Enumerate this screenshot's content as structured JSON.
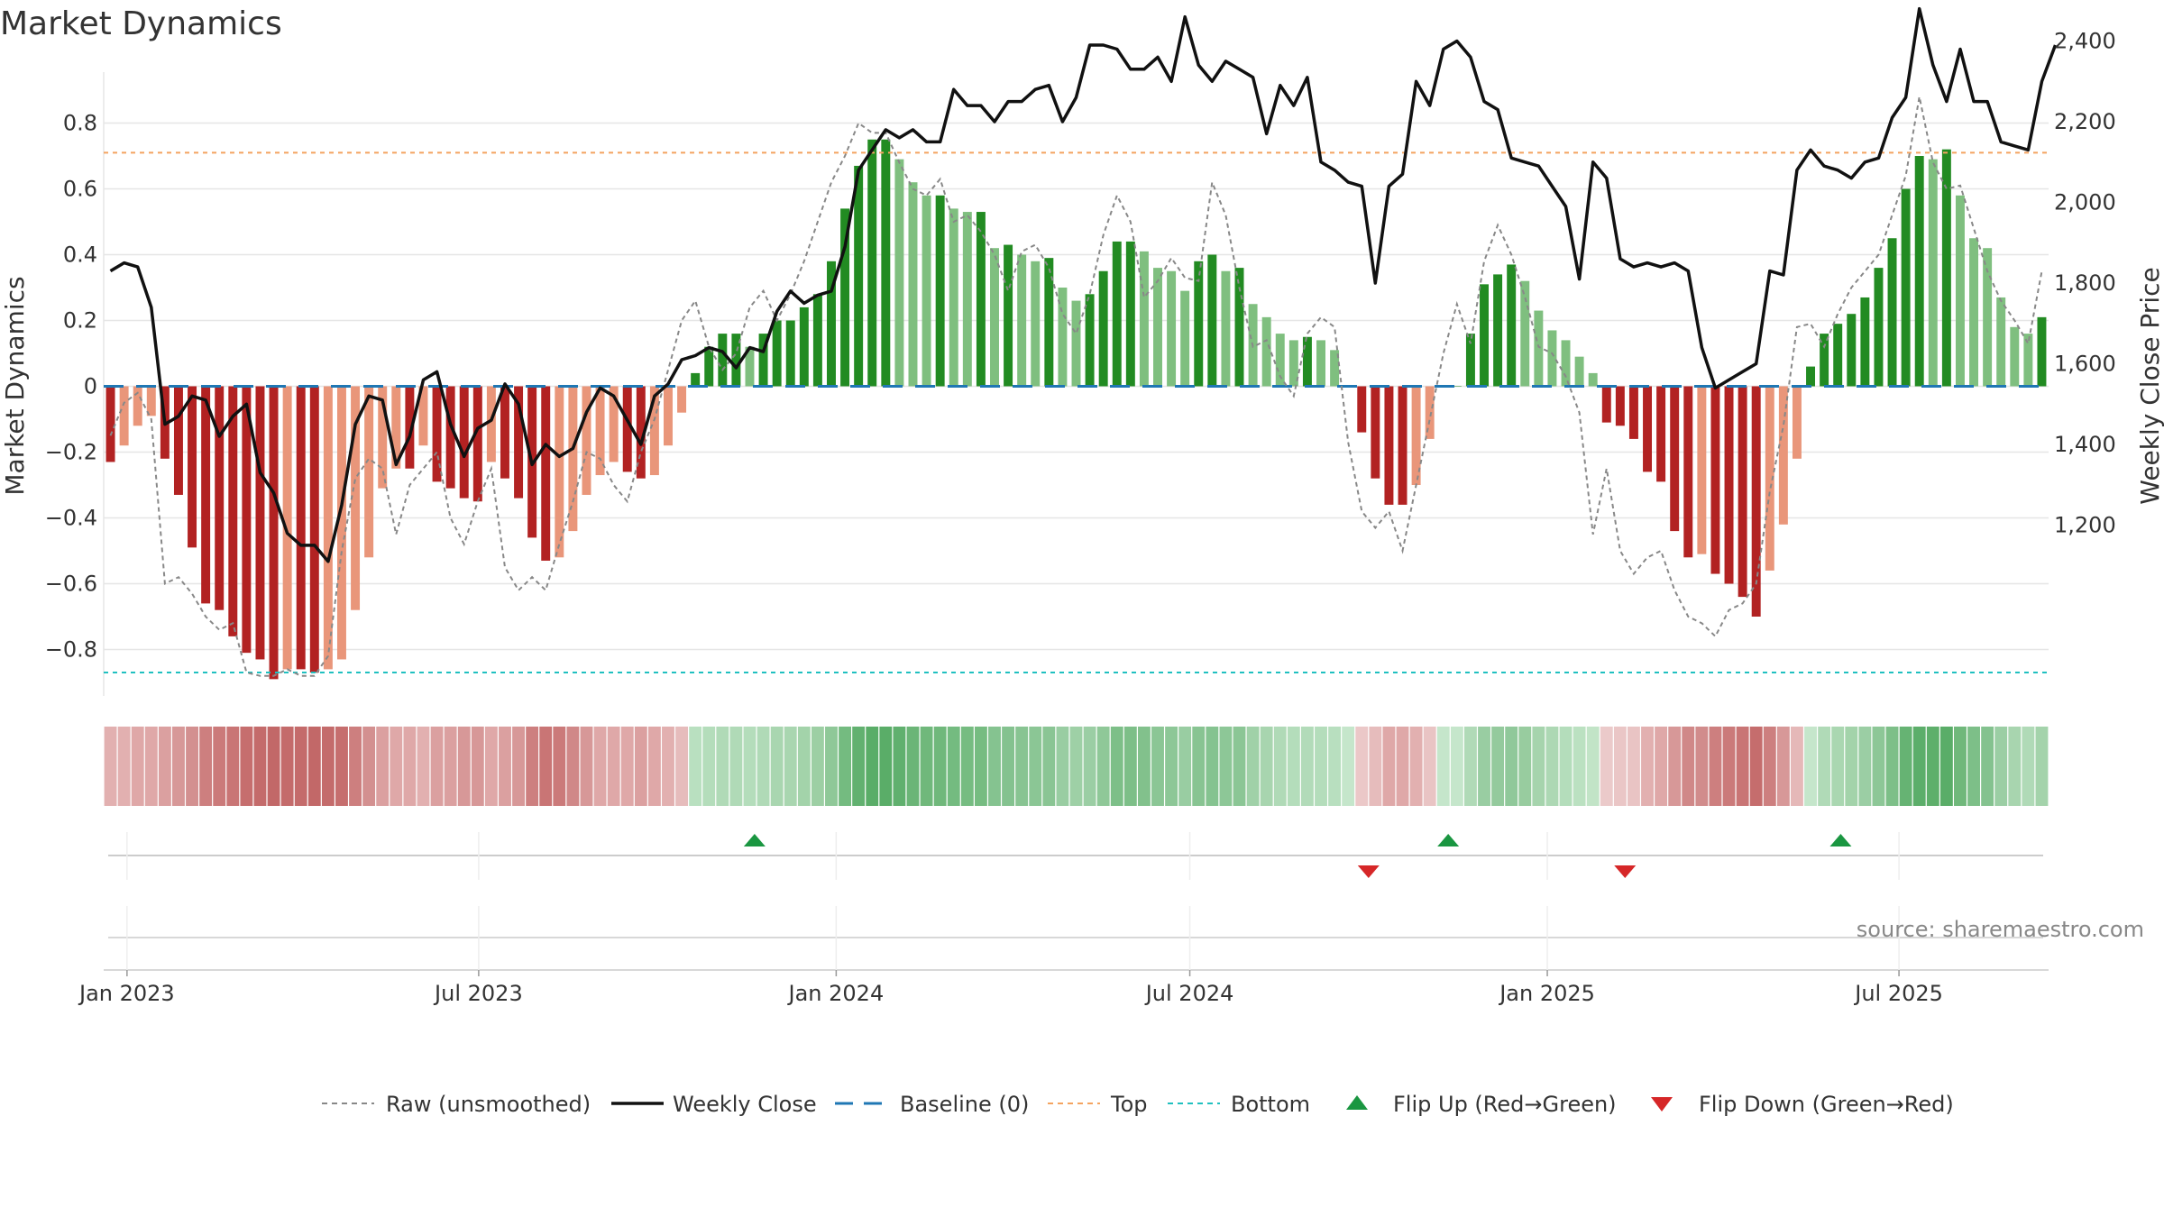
{
  "chart_data": {
    "type": "bar",
    "title": "Market Dynamics",
    "ylabel": "Market Dynamics",
    "y2label": "Weekly Close Price",
    "source": "source: sharemaestro.com",
    "ylim": [
      -0.95,
      0.96
    ],
    "y2lim": [
      1055,
      2520
    ],
    "yticks": [
      "0.8",
      "0.6",
      "0.4",
      "0.2",
      "0",
      "−0.2",
      "−0.4",
      "−0.6",
      "−0.8"
    ],
    "yticks_values": [
      0.8,
      0.6,
      0.4,
      0.2,
      0,
      -0.2,
      -0.4,
      -0.6,
      -0.8
    ],
    "y2ticks": [
      "2,400",
      "2,200",
      "2,000",
      "1,800",
      "1,600",
      "1,400",
      "1,200"
    ],
    "y2ticks_values": [
      2400,
      2200,
      2000,
      1800,
      1600,
      1400,
      1200
    ],
    "xticks": [
      "Jan 2023",
      "Jul 2023",
      "Jan 2024",
      "Jul 2024",
      "Jan 2025",
      "Jul 2025"
    ],
    "xticks_dates": [
      "2023-01-01",
      "2023-07-01",
      "2024-01-01",
      "2024-07-01",
      "2025-01-01",
      "2025-07-01"
    ],
    "start_date": "2022-12-20",
    "top_level": 0.71,
    "bottom_level": -0.87,
    "baseline": 0,
    "values": [
      -0.23,
      -0.18,
      -0.12,
      -0.09,
      -0.22,
      -0.33,
      -0.49,
      -0.66,
      -0.68,
      -0.76,
      -0.81,
      -0.83,
      -0.89,
      -0.86,
      -0.86,
      -0.87,
      -0.86,
      -0.83,
      -0.68,
      -0.52,
      -0.31,
      -0.25,
      -0.25,
      -0.18,
      -0.29,
      -0.31,
      -0.34,
      -0.35,
      -0.23,
      -0.28,
      -0.34,
      -0.46,
      -0.53,
      -0.52,
      -0.44,
      -0.33,
      -0.27,
      -0.23,
      -0.26,
      -0.28,
      -0.27,
      -0.18,
      -0.08,
      0.04,
      0.12,
      0.16,
      0.16,
      0.12,
      0.16,
      0.2,
      0.2,
      0.24,
      0.28,
      0.38,
      0.54,
      0.67,
      0.75,
      0.75,
      0.69,
      0.62,
      0.58,
      0.58,
      0.54,
      0.53,
      0.53,
      0.42,
      0.43,
      0.4,
      0.38,
      0.39,
      0.3,
      0.26,
      0.28,
      0.35,
      0.44,
      0.44,
      0.41,
      0.36,
      0.35,
      0.29,
      0.38,
      0.4,
      0.35,
      0.36,
      0.25,
      0.21,
      0.16,
      0.14,
      0.15,
      0.14,
      0.11,
      0.0,
      -0.14,
      -0.28,
      -0.36,
      -0.36,
      -0.3,
      -0.16,
      0.0,
      0.0,
      0.16,
      0.31,
      0.34,
      0.37,
      0.32,
      0.23,
      0.17,
      0.14,
      0.09,
      0.04,
      -0.11,
      -0.12,
      -0.16,
      -0.26,
      -0.29,
      -0.44,
      -0.52,
      -0.51,
      -0.57,
      -0.6,
      -0.64,
      -0.7,
      -0.56,
      -0.42,
      -0.22,
      0.06,
      0.16,
      0.19,
      0.22,
      0.27,
      0.36,
      0.45,
      0.6,
      0.7,
      0.69,
      0.72,
      0.58,
      0.45,
      0.42,
      0.27,
      0.18,
      0.16,
      0.21
    ],
    "raw": [
      -0.15,
      -0.05,
      -0.02,
      -0.1,
      -0.6,
      -0.58,
      -0.63,
      -0.7,
      -0.74,
      -0.72,
      -0.87,
      -0.88,
      -0.88,
      -0.86,
      -0.88,
      -0.88,
      -0.82,
      -0.5,
      -0.28,
      -0.22,
      -0.25,
      -0.45,
      -0.3,
      -0.25,
      -0.2,
      -0.4,
      -0.48,
      -0.35,
      -0.25,
      -0.55,
      -0.62,
      -0.58,
      -0.62,
      -0.48,
      -0.35,
      -0.2,
      -0.22,
      -0.3,
      -0.35,
      -0.2,
      -0.1,
      0.05,
      0.2,
      0.26,
      0.12,
      0.05,
      0.1,
      0.24,
      0.29,
      0.2,
      0.28,
      0.38,
      0.5,
      0.62,
      0.7,
      0.8,
      0.77,
      0.77,
      0.68,
      0.6,
      0.58,
      0.63,
      0.5,
      0.52,
      0.47,
      0.4,
      0.29,
      0.41,
      0.43,
      0.36,
      0.22,
      0.16,
      0.28,
      0.46,
      0.58,
      0.5,
      0.27,
      0.32,
      0.39,
      0.33,
      0.32,
      0.62,
      0.52,
      0.3,
      0.12,
      0.14,
      0.03,
      -0.03,
      0.16,
      0.21,
      0.18,
      -0.17,
      -0.38,
      -0.43,
      -0.38,
      -0.5,
      -0.3,
      -0.1,
      0.1,
      0.25,
      0.13,
      0.38,
      0.49,
      0.4,
      0.27,
      0.12,
      0.1,
      0.03,
      -0.08,
      -0.45,
      -0.25,
      -0.5,
      -0.57,
      -0.52,
      -0.5,
      -0.62,
      -0.7,
      -0.72,
      -0.76,
      -0.68,
      -0.66,
      -0.6,
      -0.32,
      -0.12,
      0.18,
      0.19,
      0.12,
      0.22,
      0.3,
      0.35,
      0.4,
      0.52,
      0.64,
      0.88,
      0.68,
      0.6,
      0.61,
      0.48,
      0.35,
      0.26,
      0.2,
      0.13,
      0.35
    ],
    "price": [
      1830,
      1850,
      1840,
      1740,
      1450,
      1470,
      1520,
      1510,
      1420,
      1470,
      1500,
      1330,
      1280,
      1180,
      1150,
      1150,
      1110,
      1250,
      1450,
      1520,
      1510,
      1350,
      1420,
      1560,
      1580,
      1450,
      1370,
      1440,
      1460,
      1550,
      1500,
      1350,
      1400,
      1370,
      1390,
      1480,
      1540,
      1520,
      1460,
      1400,
      1520,
      1550,
      1610,
      1620,
      1640,
      1630,
      1590,
      1640,
      1630,
      1730,
      1780,
      1750,
      1770,
      1780,
      1890,
      2080,
      2130,
      2180,
      2160,
      2180,
      2150,
      2150,
      2280,
      2240,
      2240,
      2200,
      2250,
      2250,
      2280,
      2290,
      2200,
      2260,
      2390,
      2390,
      2380,
      2330,
      2330,
      2360,
      2300,
      2460,
      2340,
      2300,
      2350,
      2330,
      2310,
      2170,
      2290,
      2240,
      2310,
      2100,
      2080,
      2050,
      2040,
      1800,
      2040,
      2070,
      2300,
      2240,
      2380,
      2400,
      2360,
      2250,
      2230,
      2110,
      2100,
      2090,
      2040,
      1990,
      1810,
      2100,
      2060,
      1860,
      1840,
      1850,
      1840,
      1850,
      1830,
      1640,
      1540,
      1560,
      1580,
      1600,
      1830,
      1820,
      2080,
      2130,
      2090,
      2080,
      2060,
      2100,
      2110,
      2210,
      2260,
      2480,
      2340,
      2250,
      2380,
      2250,
      2250,
      2150,
      2140,
      2130,
      2300,
      2390
    ],
    "strip_colors": [
      "#e2b0b0",
      "#e2b0b0",
      "#dfa8a8",
      "#dfa8a8",
      "#dba0a0",
      "#d79898",
      "#d39090",
      "#cd7f7f",
      "#cb7a7a",
      "#c97575",
      "#c66e6e",
      "#c46b6b",
      "#c26868",
      "#c46b6b",
      "#c46b6b",
      "#c26868",
      "#c46b6b",
      "#c66e6e",
      "#cd7f7f",
      "#d39090",
      "#dba0a0",
      "#dfa8a8",
      "#dfa8a8",
      "#e2b0b0",
      "#dba0a0",
      "#dba0a0",
      "#d79898",
      "#d79898",
      "#dfa8a8",
      "#dba0a0",
      "#d79898",
      "#cd7f7f",
      "#c97575",
      "#cb7a7a",
      "#d08888",
      "#d79898",
      "#dfa8a8",
      "#dfa8a8",
      "#dfa8a8",
      "#dba0a0",
      "#dfa8a8",
      "#e2b0b0",
      "#e6bcbc",
      "#b9e0c0",
      "#b4ddbb",
      "#b0dab7",
      "#b0dab7",
      "#b4ddbb",
      "#b0dab7",
      "#a9d6b0",
      "#a9d6b0",
      "#a3d3aa",
      "#9dcfa4",
      "#8fc898",
      "#74bb80",
      "#62b170",
      "#5aad68",
      "#5aad68",
      "#60b06e",
      "#6bb577",
      "#70b87b",
      "#70b87b",
      "#74bb80",
      "#76bc81",
      "#76bc81",
      "#85c390",
      "#84c28f",
      "#88c492",
      "#8bc695",
      "#8ac594",
      "#99cda2",
      "#9ed0a6",
      "#9bcea4",
      "#8fc898",
      "#7dbf88",
      "#7dbf88",
      "#82c18c",
      "#8bc695",
      "#8dc797",
      "#99cda2",
      "#88c492",
      "#85c390",
      "#8dc797",
      "#8bc695",
      "#a0d1a8",
      "#a8d5af",
      "#b0dab7",
      "#b4ddbb",
      "#b2dbb9",
      "#b4ddbb",
      "#b8dfbf",
      "#c5e6cb",
      "#ebc8c8",
      "#e6bcbc",
      "#dfa8a8",
      "#dfa8a8",
      "#e2b0b0",
      "#e9c4c4",
      "#c5e6cb",
      "#c5e6cb",
      "#b0dab7",
      "#99cda2",
      "#94ca9d",
      "#90c89a",
      "#98cc9f",
      "#a6d4ad",
      "#add8b4",
      "#b4ddbb",
      "#bbe1c1",
      "#c2e4c7",
      "#ebcaca",
      "#eac6c6",
      "#e9c4c4",
      "#e2b0b0",
      "#dfa8a8",
      "#d79898",
      "#d08888",
      "#d18c8c",
      "#cd7f7f",
      "#cb7a7a",
      "#c97575",
      "#c56d6d",
      "#cd7f7f",
      "#d79898",
      "#e5b8b8",
      "#c5e6cb",
      "#b0dab7",
      "#aad7b1",
      "#a3d3aa",
      "#9bcea4",
      "#8dc797",
      "#7dbf88",
      "#66b373",
      "#5cae6a",
      "#5eaf6b",
      "#5aad68",
      "#70b87b",
      "#7dbf88",
      "#84c28f",
      "#9bcea4",
      "#a8d5af",
      "#b0dab7",
      "#a4d3ab"
    ],
    "flips_up_dates": [
      "2023-11-20",
      "2024-11-11",
      "2025-06-01"
    ],
    "flips_down_dates": [
      "2024-10-01",
      "2025-02-10"
    ],
    "legend": [
      "Raw (unsmoothed)",
      "Weekly Close",
      "Baseline (0)",
      "Top",
      "Bottom",
      "Flip Up (Red→Green)",
      "Flip Down (Green→Red)"
    ],
    "colors": {
      "pos_strong": "#228b22",
      "pos_weak": "#7fbf7f",
      "neg_strong": "#b22222",
      "neg_weak": "#e9967a",
      "raw": "#888888",
      "close": "#111111",
      "baseline": "#1f77b4",
      "top": "#f4a460",
      "bottom": "#20c0c0",
      "flip_up": "#1a9641",
      "flip_down": "#d62728"
    }
  }
}
